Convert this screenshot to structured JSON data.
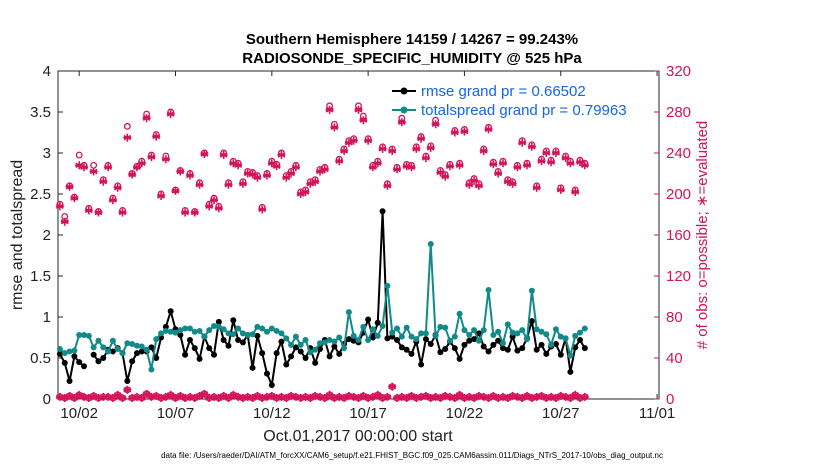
{
  "chart_data": {
    "type": "line",
    "title_line1": "Southern Hemisphere 14159 / 14267 = 99.243%",
    "title_line2": "RADIOSONDE_SPECIFIC_HUMIDITY @ 525 hPa",
    "ylabel": "rmse and totalspread",
    "y2label": "# of obs: o=possible; ∗=evaluated",
    "xlabel": "Oct.01,2017 00:00:00 start",
    "footnote": "data file: /Users/raeder/DAI/ATM_forcXX/CAM6_setup/f.e21.FHIST_BGC.f09_025.CAM6assim.011/Diags_NTrS_2017-10/obs_diag_output.nc",
    "xlim": [
      0.9,
      32.1
    ],
    "ylim": [
      0,
      4
    ],
    "y2lim": [
      0,
      320
    ],
    "yticks": [
      "0",
      "0.5",
      "1",
      "1.5",
      "2",
      "2.5",
      "3",
      "3.5",
      "4"
    ],
    "y2ticks": [
      "0",
      "40",
      "80",
      "120",
      "160",
      "200",
      "240",
      "280",
      "320"
    ],
    "xticks": [
      {
        "pos": 2,
        "label": "10/02"
      },
      {
        "pos": 7,
        "label": "10/07"
      },
      {
        "pos": 12,
        "label": "10/12"
      },
      {
        "pos": 17,
        "label": "10/17"
      },
      {
        "pos": 22,
        "label": "10/22"
      },
      {
        "pos": 27,
        "label": "10/27"
      },
      {
        "pos": 32,
        "label": "11/01"
      }
    ],
    "x_start": 1.0,
    "x_step": 0.25,
    "series": [
      {
        "name": "rmse",
        "legend": "rmse grand pr = 0.66502",
        "color": "#000000",
        "values": [
          0.55,
          0.44,
          0.22,
          0.52,
          0.45,
          0.4,
          null,
          0.54,
          0.46,
          0.5,
          0.6,
          0.58,
          0.62,
          0.56,
          0.22,
          0.46,
          0.56,
          0.58,
          0.58,
          0.63,
          0.5,
          0.75,
          0.88,
          1.07,
          0.85,
          0.78,
          0.54,
          0.72,
          0.62,
          0.49,
          0.76,
          0.62,
          0.54,
          0.94,
          0.72,
          0.65,
          0.96,
          0.72,
          0.69,
          0.78,
          0.38,
          0.77,
          0.56,
          0.31,
          0.17,
          0.56,
          0.7,
          0.42,
          0.52,
          0.63,
          0.58,
          0.5,
          0.62,
          0.44,
          0.61,
          0.72,
          0.52,
          0.64,
          0.55,
          0.67,
          0.73,
          0.71,
          0.69,
          0.81,
          0.97,
          0.75,
          0.93,
          2.29,
          0.74,
          0.76,
          0.72,
          0.63,
          0.6,
          0.55,
          0.7,
          0.42,
          0.73,
          0.67,
          0.78,
          0.57,
          0.61,
          0.7,
          0.62,
          0.49,
          0.66,
          0.71,
          0.73,
          0.8,
          0.64,
          0.58,
          0.66,
          0.71,
          0.62,
          0.6,
          0.76,
          0.59,
          0.62,
          0.74,
          0.95,
          0.6,
          0.66,
          0.55,
          0.64,
          0.67,
          0.54,
          0.74,
          0.33,
          0.63,
          0.72,
          0.62
        ]
      },
      {
        "name": "totalspread",
        "legend": "totalspread grand pr = 0.79963",
        "color": "#138a8a",
        "values": [
          0.61,
          0.56,
          0.58,
          0.59,
          0.78,
          0.78,
          0.77,
          0.63,
          0.71,
          0.63,
          0.58,
          0.71,
          0.61,
          0.56,
          0.68,
          0.67,
          0.65,
          0.64,
          0.6,
          0.36,
          0.73,
          0.8,
          0.83,
          0.82,
          0.81,
          0.84,
          0.86,
          0.86,
          0.82,
          0.83,
          0.76,
          0.84,
          0.89,
          0.88,
          0.85,
          0.8,
          0.79,
          0.86,
          0.8,
          0.78,
          0.79,
          0.88,
          0.86,
          0.82,
          0.86,
          0.83,
          0.8,
          0.74,
          0.66,
          0.76,
          0.66,
          0.72,
          0.57,
          0.6,
          0.68,
          0.69,
          0.72,
          0.7,
          0.75,
          0.62,
          1.06,
          0.77,
          0.72,
          0.88,
          0.72,
          0.85,
          0.77,
          0.89,
          1.38,
          0.81,
          0.86,
          0.76,
          0.87,
          0.76,
          0.73,
          0.8,
          0.8,
          1.89,
          0.77,
          0.88,
          0.87,
          0.71,
          0.76,
          1.04,
          0.84,
          0.78,
          0.84,
          0.71,
          0.84,
          1.33,
          0.78,
          0.82,
          0.68,
          0.91,
          0.81,
          0.8,
          0.84,
          0.73,
          1.32,
          0.85,
          0.82,
          0.79,
          0.66,
          0.85,
          0.76,
          0.74,
          0.53,
          0.77,
          0.81,
          0.86
        ]
      },
      {
        "name": "obs_possible",
        "color": "#d4145a",
        "values": [
          190,
          178,
          208,
          197,
          238,
          228,
          186,
          228,
          183,
          214,
          228,
          196,
          208,
          184,
          266,
          220,
          227,
          232,
          278,
          238,
          258,
          200,
          237,
          280,
          204,
          223,
          184,
          220,
          183,
          211,
          240,
          190,
          196,
          188,
          240,
          211,
          232,
          230,
          212,
          222,
          221,
          218,
          187,
          220,
          232,
          229,
          240,
          218,
          222,
          228,
          202,
          204,
          212,
          214,
          224,
          226,
          286,
          268,
          234,
          244,
          252,
          254,
          286,
          276,
          254,
          228,
          232,
          246,
          210,
          244,
          226,
          274,
          229,
          228,
          246,
          256,
          237,
          247,
          272,
          223,
          219,
          229,
          262,
          230,
          263,
          211,
          215,
          210,
          244,
          265,
          231,
          222,
          232,
          214,
          212,
          228,
          252,
          230,
          248,
          208,
          234,
          242,
          233,
          242,
          206,
          237,
          232,
          204,
          233,
          230
        ],
        "marker": "circle"
      },
      {
        "name": "obs_evaluated",
        "color": "#d4145a",
        "values": [
          188,
          173,
          207,
          196,
          228,
          226,
          184,
          222,
          182,
          212,
          226,
          194,
          206,
          182,
          255,
          219,
          226,
          230,
          274,
          236,
          256,
          198,
          234,
          278,
          203,
          222,
          182,
          218,
          182,
          209,
          239,
          188,
          194,
          186,
          238,
          209,
          230,
          228,
          210,
          220,
          219,
          216,
          185,
          218,
          230,
          227,
          238,
          216,
          220,
          226,
          200,
          202,
          210,
          212,
          222,
          224,
          282,
          265,
          232,
          242,
          250,
          252,
          282,
          272,
          252,
          226,
          230,
          244,
          208,
          242,
          224,
          270,
          227,
          226,
          244,
          254,
          235,
          245,
          268,
          221,
          217,
          227,
          260,
          228,
          261,
          209,
          213,
          208,
          242,
          263,
          229,
          220,
          230,
          212,
          210,
          226,
          250,
          228,
          246,
          206,
          232,
          240,
          231,
          240,
          204,
          235,
          230,
          202,
          231,
          228
        ],
        "marker": "star"
      },
      {
        "name": "obs_possible_low",
        "color": "#d4145a",
        "values": [
          2,
          1,
          3,
          1,
          4,
          2,
          1,
          3,
          1,
          2,
          2,
          1,
          4,
          1,
          9,
          1,
          2,
          1,
          5,
          2,
          3,
          1,
          2,
          4,
          1,
          3,
          1,
          2,
          1,
          3,
          5,
          1,
          2,
          1,
          3,
          1,
          4,
          2,
          1,
          2,
          1,
          3,
          1,
          2,
          3,
          1,
          2,
          1,
          3,
          2,
          1,
          2,
          1,
          3,
          2,
          1,
          4,
          1,
          2,
          1,
          3,
          2,
          1,
          3,
          1,
          2,
          4,
          1,
          2,
          12,
          1,
          2,
          1,
          3,
          1,
          2,
          3,
          1,
          2,
          1,
          3,
          2,
          1,
          4,
          1,
          2,
          1,
          3,
          2,
          1,
          3,
          1,
          2,
          1,
          3,
          2,
          1,
          3,
          1,
          2,
          3,
          1,
          2,
          1,
          3,
          2,
          1,
          4,
          1,
          2
        ],
        "marker": "circle"
      },
      {
        "name": "obs_evaluated_low",
        "color": "#d4145a",
        "values": [
          2,
          1,
          3,
          1,
          4,
          2,
          1,
          3,
          1,
          2,
          2,
          1,
          4,
          1,
          9,
          1,
          2,
          1,
          5,
          2,
          3,
          1,
          2,
          4,
          1,
          3,
          1,
          2,
          1,
          3,
          5,
          1,
          2,
          1,
          3,
          1,
          4,
          2,
          1,
          2,
          1,
          3,
          1,
          2,
          3,
          1,
          2,
          1,
          3,
          2,
          1,
          2,
          1,
          3,
          2,
          1,
          4,
          1,
          2,
          1,
          3,
          2,
          1,
          3,
          1,
          2,
          4,
          1,
          2,
          12,
          1,
          2,
          1,
          3,
          1,
          2,
          3,
          1,
          2,
          1,
          3,
          2,
          1,
          4,
          1,
          2,
          1,
          3,
          2,
          1,
          3,
          1,
          2,
          1,
          3,
          2,
          1,
          3,
          1,
          2,
          3,
          1,
          2,
          1,
          3,
          2,
          1,
          4,
          1,
          2
        ],
        "marker": "star"
      }
    ]
  }
}
